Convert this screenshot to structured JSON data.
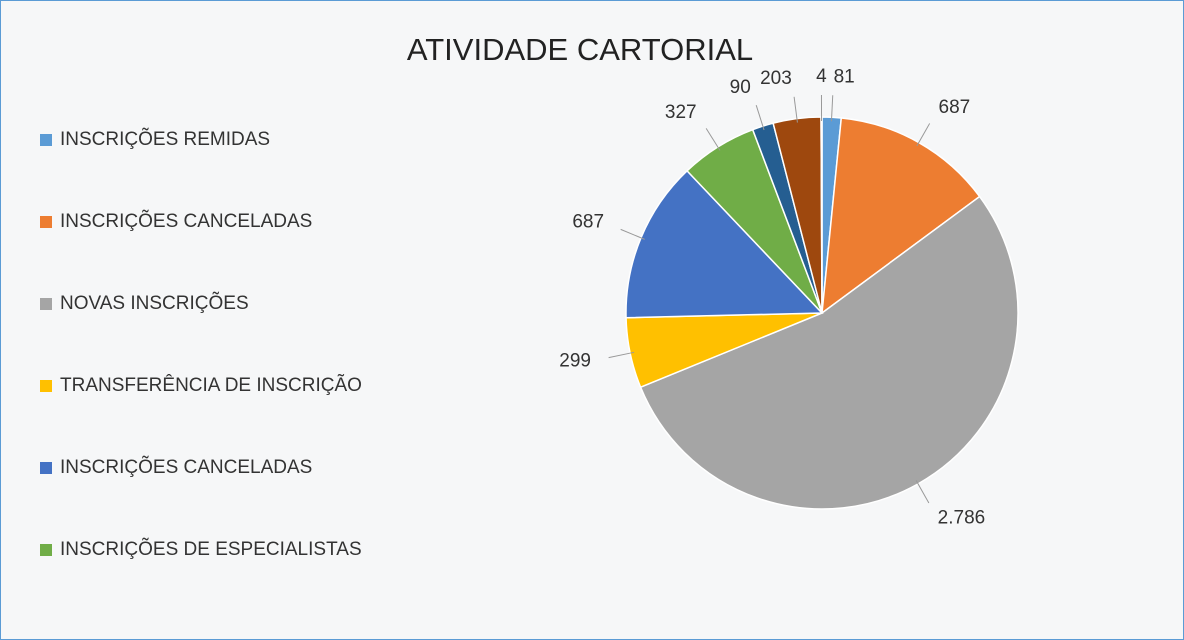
{
  "chart_data": {
    "type": "pie",
    "title": "ATIVIDADE CARTORIAL",
    "categories": [
      "INSCRIÇÕES REMIDAS",
      "INSCRIÇÕES CANCELADAS",
      "NOVAS INSCRIÇÕES",
      "TRANSFERÊNCIA DE INSCRIÇÃO",
      "INSCRIÇÕES CANCELADAS",
      "INSCRIÇÕES DE ESPECIALISTAS",
      null,
      null,
      null
    ],
    "values": [
      81,
      687,
      2786,
      299,
      687,
      327,
      90,
      203,
      4
    ],
    "value_labels": [
      "81",
      "687",
      "2.786",
      "299",
      "687",
      "327",
      "90",
      "203",
      "4"
    ],
    "colors": [
      "#5b9bd5",
      "#ed7d31",
      "#a5a5a5",
      "#ffc000",
      "#4472c4",
      "#70ad47",
      "#255e91",
      "#9e480e",
      "#636363"
    ],
    "legend": "left"
  }
}
